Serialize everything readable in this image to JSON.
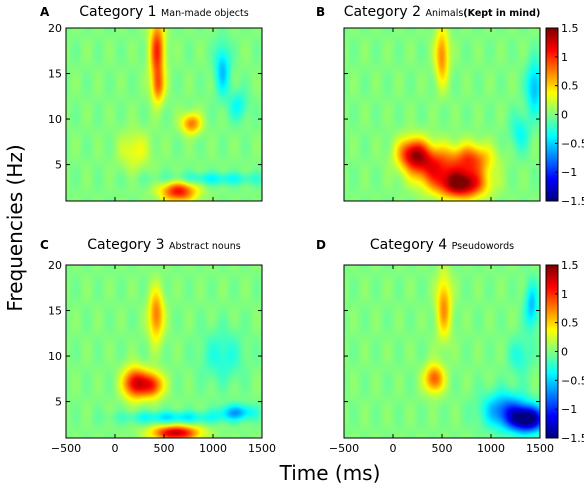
{
  "figure": {
    "ylabel": "Frequencies (Hz)",
    "xlabel": "Time (ms)"
  },
  "chart_data": [
    {
      "type": "heatmap",
      "panel": "A",
      "title": "Category 1",
      "subtitle": "Man-made objects",
      "subtitle_bold": "",
      "x_ticks": [
        -500,
        0,
        500,
        1000,
        1500
      ],
      "y_ticks": [
        5,
        10,
        15,
        20
      ],
      "xlim": [
        -500,
        1500
      ],
      "ylim": [
        1,
        20
      ],
      "x_tick_labels_shown": false,
      "y_tick_labels_shown": true,
      "colorbar": false,
      "blobs": [
        {
          "t": 430,
          "f": 17.5,
          "st": 55,
          "sf": 2.6,
          "v": 1.0
        },
        {
          "t": 440,
          "f": 13.5,
          "st": 45,
          "sf": 1.3,
          "v": 0.6
        },
        {
          "t": 780,
          "f": 9.5,
          "st": 70,
          "sf": 0.8,
          "v": 0.8
        },
        {
          "t": 650,
          "f": 2.0,
          "st": 130,
          "sf": 0.8,
          "v": 1.1
        },
        {
          "t": 1100,
          "f": 15.5,
          "st": 55,
          "sf": 2.0,
          "v": -0.55
        },
        {
          "t": 1260,
          "f": 11.5,
          "st": 70,
          "sf": 1.2,
          "v": -0.35
        },
        {
          "t": 200,
          "f": 6.5,
          "st": 110,
          "sf": 1.5,
          "v": 0.35
        },
        {
          "t": 1000,
          "f": 3.4,
          "st": 400,
          "sf": 0.5,
          "v": -0.35
        }
      ]
    },
    {
      "type": "heatmap",
      "panel": "B",
      "title": "Category 2",
      "subtitle": "Animals",
      "subtitle_bold": "(Kept in mind)",
      "x_ticks": [
        -500,
        0,
        500,
        1000,
        1500
      ],
      "y_ticks": [
        5,
        10,
        15,
        20
      ],
      "xlim": [
        -500,
        1500
      ],
      "ylim": [
        1,
        20
      ],
      "x_tick_labels_shown": false,
      "y_tick_labels_shown": false,
      "colorbar": true,
      "colorbar_ticks": [
        1.5,
        1,
        0.5,
        0,
        -0.5,
        -1,
        -1.5
      ],
      "colorbar_range": [
        -1.5,
        1.5
      ],
      "blobs": [
        {
          "t": 700,
          "f": 2.8,
          "st": 170,
          "sf": 1.1,
          "v": 1.5
        },
        {
          "t": 200,
          "f": 6.2,
          "st": 110,
          "sf": 1.2,
          "v": 1.1
        },
        {
          "t": 400,
          "f": 4.8,
          "st": 160,
          "sf": 1.5,
          "v": 1.0
        },
        {
          "t": 800,
          "f": 5.5,
          "st": 150,
          "sf": 1.2,
          "v": 0.9
        },
        {
          "t": 500,
          "f": 17.0,
          "st": 50,
          "sf": 2.2,
          "v": 0.75
        },
        {
          "t": 1450,
          "f": 13.5,
          "st": 60,
          "sf": 2.0,
          "v": -0.6
        },
        {
          "t": 1300,
          "f": 8.5,
          "st": 70,
          "sf": 1.5,
          "v": -0.35
        }
      ]
    },
    {
      "type": "heatmap",
      "panel": "C",
      "title": "Category 3",
      "subtitle": "Abstract nouns",
      "subtitle_bold": "",
      "x_ticks": [
        -500,
        0,
        500,
        1000,
        1500
      ],
      "y_ticks": [
        5,
        10,
        15,
        20
      ],
      "xlim": [
        -500,
        1500
      ],
      "ylim": [
        1,
        20
      ],
      "x_tick_labels_shown": true,
      "y_tick_labels_shown": true,
      "colorbar": false,
      "blobs": [
        {
          "t": 200,
          "f": 7.0,
          "st": 85,
          "sf": 1.2,
          "v": 1.2
        },
        {
          "t": 380,
          "f": 6.8,
          "st": 80,
          "sf": 1.0,
          "v": 1.0
        },
        {
          "t": 620,
          "f": 1.5,
          "st": 170,
          "sf": 0.6,
          "v": 1.3
        },
        {
          "t": 420,
          "f": 14.5,
          "st": 55,
          "sf": 2.0,
          "v": 0.8
        },
        {
          "t": 600,
          "f": 3.2,
          "st": 350,
          "sf": 0.5,
          "v": -0.45
        },
        {
          "t": 1250,
          "f": 3.8,
          "st": 130,
          "sf": 0.6,
          "v": -0.6
        },
        {
          "t": 1100,
          "f": 10.0,
          "st": 150,
          "sf": 2.0,
          "v": -0.3
        }
      ]
    },
    {
      "type": "heatmap",
      "panel": "D",
      "title": "Category 4",
      "subtitle": "Pseudowords",
      "subtitle_bold": "",
      "x_ticks": [
        -500,
        0,
        500,
        1000,
        1500
      ],
      "y_ticks": [
        5,
        10,
        15,
        20
      ],
      "xlim": [
        -500,
        1500
      ],
      "ylim": [
        1,
        20
      ],
      "x_tick_labels_shown": true,
      "y_tick_labels_shown": false,
      "colorbar": true,
      "colorbar_ticks": [
        1.5,
        1,
        0.5,
        0,
        -0.5,
        -1,
        -1.5
      ],
      "colorbar_range": [
        -1.5,
        1.5
      ],
      "blobs": [
        {
          "t": 1380,
          "f": 3.0,
          "st": 130,
          "sf": 1.0,
          "v": -1.5
        },
        {
          "t": 1150,
          "f": 4.0,
          "st": 160,
          "sf": 1.4,
          "v": -0.8
        },
        {
          "t": 420,
          "f": 7.5,
          "st": 70,
          "sf": 1.1,
          "v": 0.9
        },
        {
          "t": 520,
          "f": 15.5,
          "st": 55,
          "sf": 2.5,
          "v": 0.7
        },
        {
          "t": 1420,
          "f": 15.5,
          "st": 50,
          "sf": 1.8,
          "v": -0.55
        },
        {
          "t": 1300,
          "f": 10.0,
          "st": 80,
          "sf": 1.5,
          "v": -0.3
        }
      ]
    }
  ]
}
